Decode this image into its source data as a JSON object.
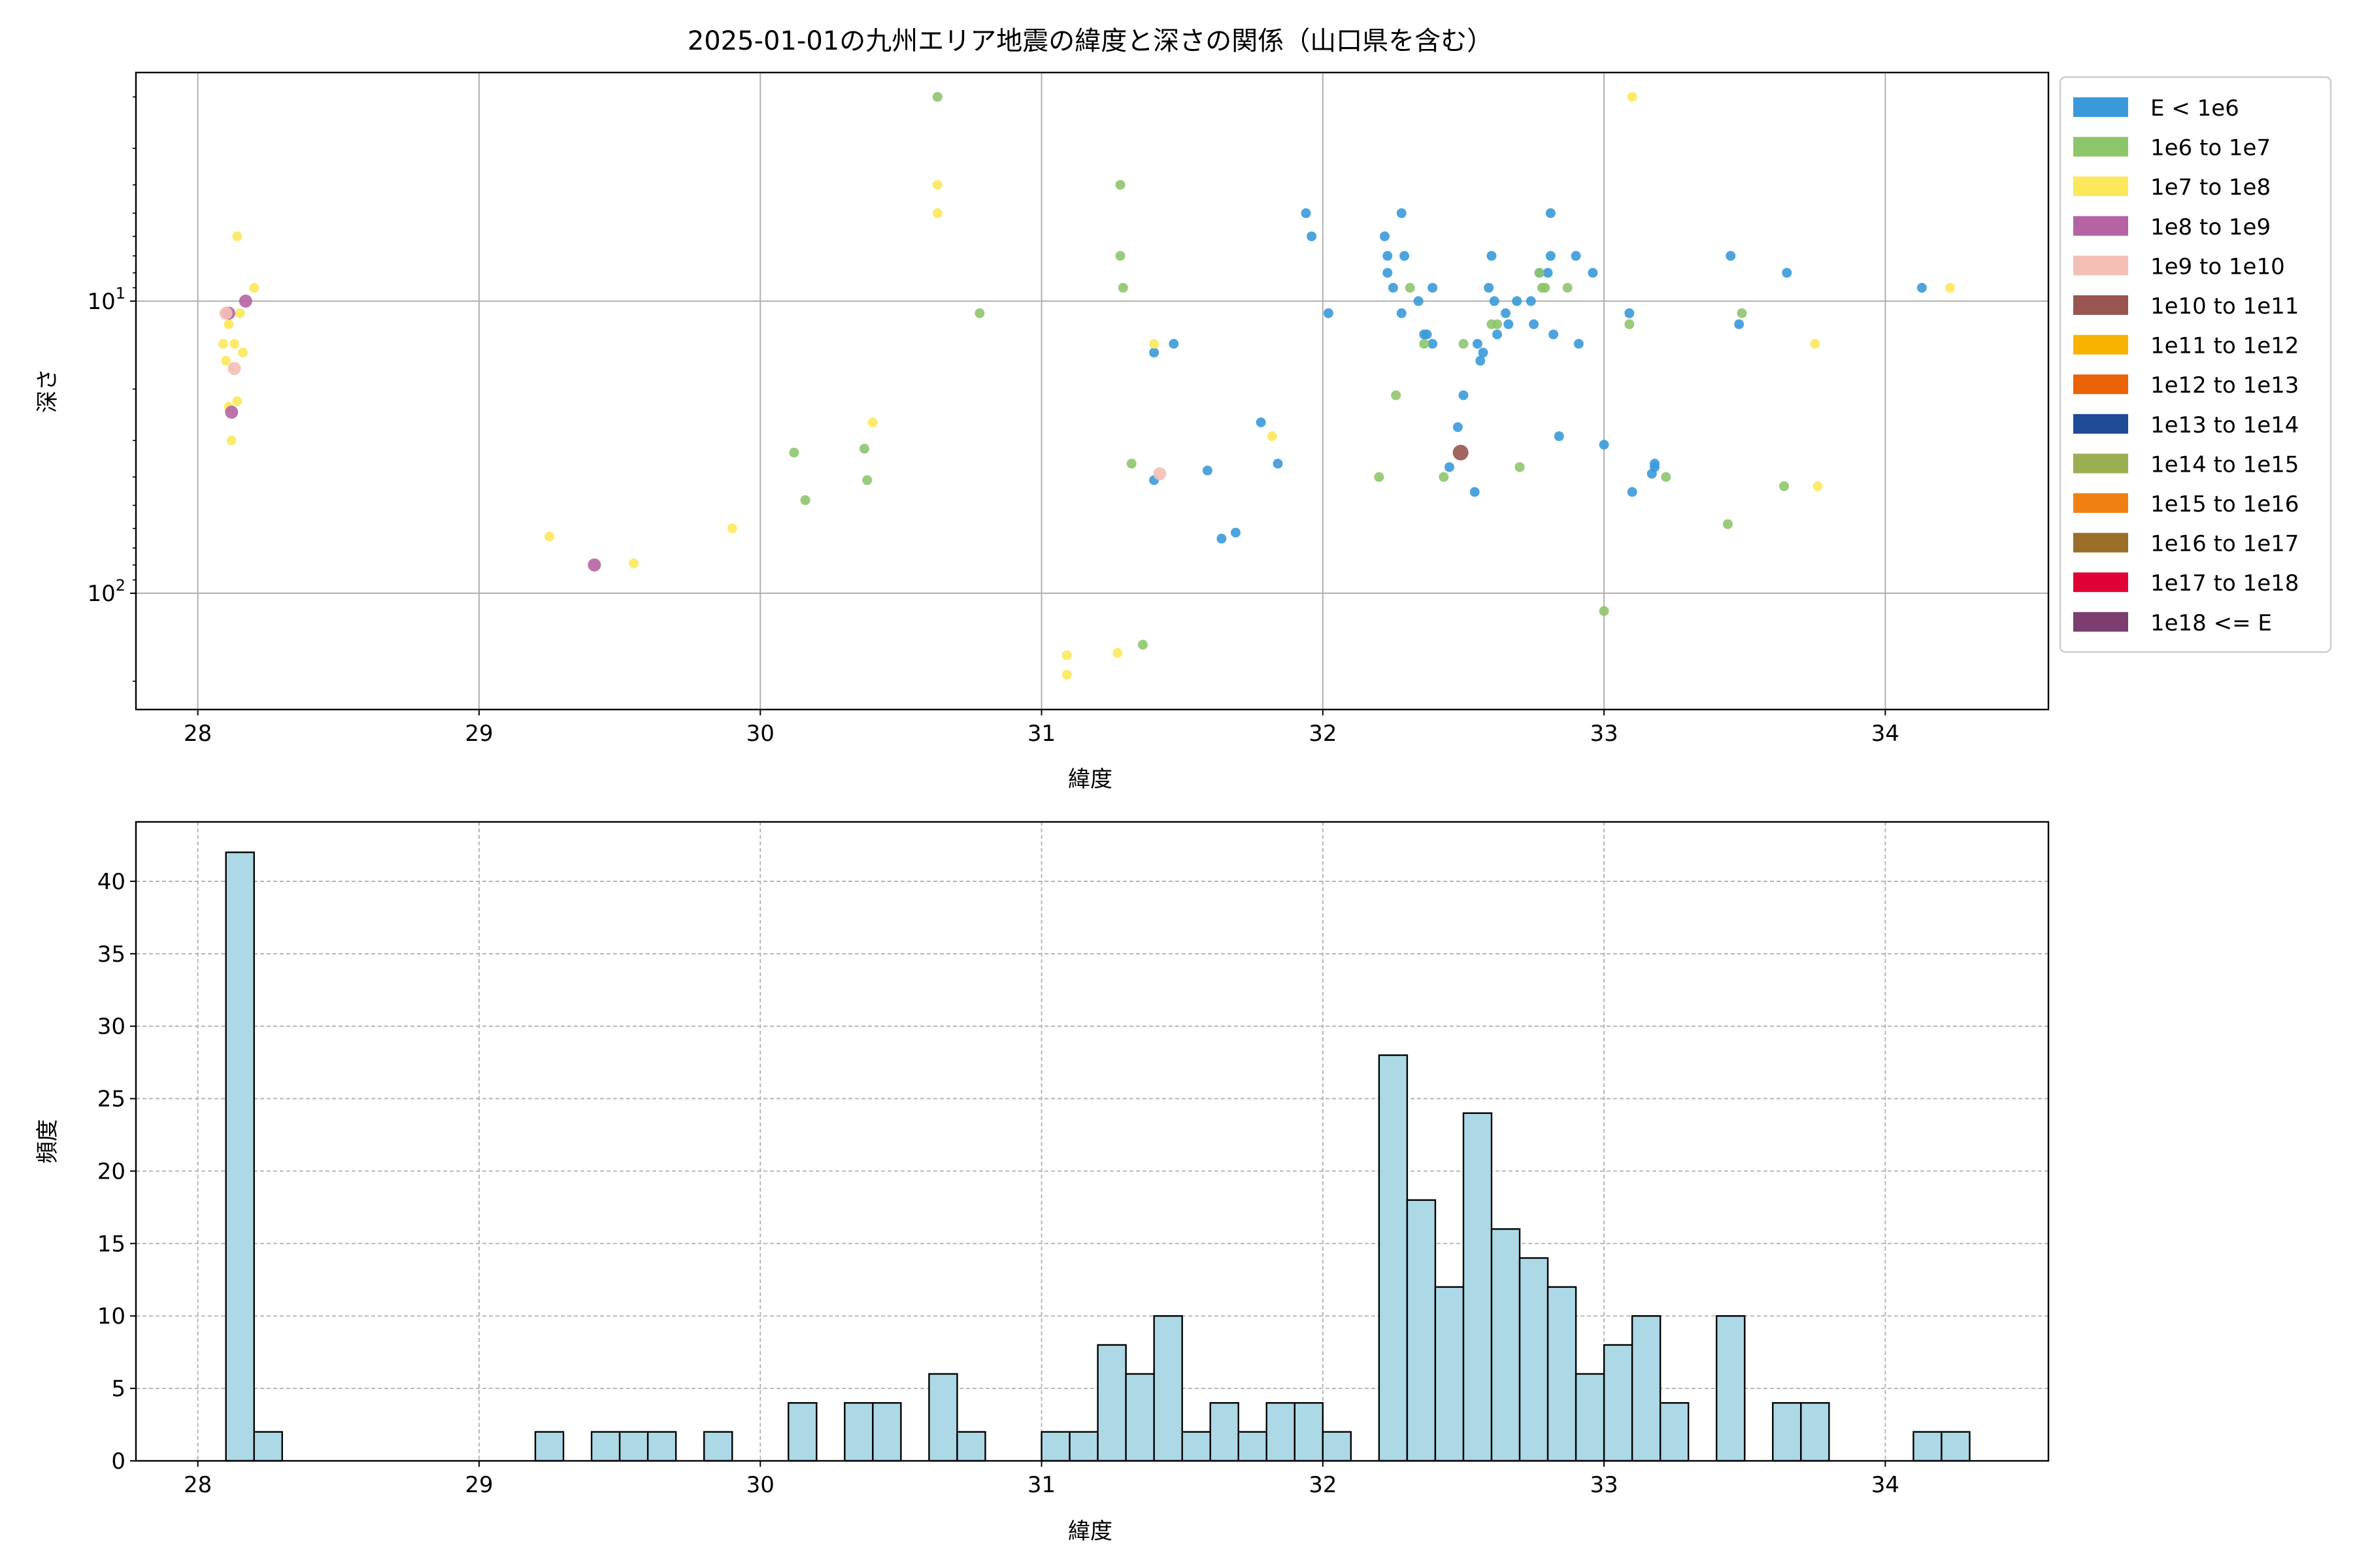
{
  "figure": {
    "title": "2025-01-01の九州エリア地震の緯度と深さの関係（山口県を含む）"
  },
  "chart_data": [
    {
      "type": "scatter",
      "title": "2025-01-01の九州エリア地震の緯度と深さの関係（山口県を含む）",
      "xlabel": "緯度",
      "ylabel": "深さ",
      "xlim": [
        27.78,
        34.58
      ],
      "ylim": [
        250,
        1.65
      ],
      "y_scale": "log",
      "y_inverted": true,
      "grid": true,
      "legend_position": "outside-right",
      "x_ticks": [
        "28",
        "29",
        "30",
        "31",
        "32",
        "33",
        "34"
      ],
      "y_ticks": [
        {
          "value": 10,
          "base": "10",
          "exp": "1"
        },
        {
          "value": 100,
          "base": "10",
          "exp": "2"
        }
      ],
      "legend": [
        {
          "label": "E < 1e6",
          "color": "#3a9ad9"
        },
        {
          "label": "1e6 to 1e7",
          "color": "#8dc56b"
        },
        {
          "label": "1e7 to 1e8",
          "color": "#fce85c"
        },
        {
          "label": "1e8 to 1e9",
          "color": "#b563a4"
        },
        {
          "label": "1e9 to 1e10",
          "color": "#f4bfb5"
        },
        {
          "label": "1e10 to 1e11",
          "color": "#985551"
        },
        {
          "label": "1e11 to 1e12",
          "color": "#f8b200"
        },
        {
          "label": "1e12 to 1e13",
          "color": "#ea6307"
        },
        {
          "label": "1e13 to 1e14",
          "color": "#1e4a96"
        },
        {
          "label": "1e14 to 1e15",
          "color": "#9bae52"
        },
        {
          "label": "1e15 to 1e16",
          "color": "#f08012"
        },
        {
          "label": "1e16 to 1e17",
          "color": "#9a6f2a"
        },
        {
          "label": "1e17 to 1e18",
          "color": "#df0036"
        },
        {
          "label": "1e18 <= E",
          "color": "#7b3e6e"
        }
      ],
      "series": [
        {
          "category": "E < 1e6",
          "points": [
            [
              31.4,
              15
            ],
            [
              31.4,
              41
            ],
            [
              31.47,
              14
            ],
            [
              31.59,
              38
            ],
            [
              31.64,
              65
            ],
            [
              31.69,
              62
            ],
            [
              31.78,
              26
            ],
            [
              31.84,
              36
            ],
            [
              31.94,
              5
            ],
            [
              31.96,
              6
            ],
            [
              32.02,
              11
            ],
            [
              32.22,
              6
            ],
            [
              32.23,
              7
            ],
            [
              32.23,
              8
            ],
            [
              32.25,
              9
            ],
            [
              32.28,
              5
            ],
            [
              32.28,
              11
            ],
            [
              32.29,
              7
            ],
            [
              32.34,
              10
            ],
            [
              32.36,
              13
            ],
            [
              32.37,
              13
            ],
            [
              32.39,
              9
            ],
            [
              32.39,
              14
            ],
            [
              32.45,
              37
            ],
            [
              32.48,
              27
            ],
            [
              32.5,
              21
            ],
            [
              32.54,
              45
            ],
            [
              32.55,
              14
            ],
            [
              32.56,
              16
            ],
            [
              32.57,
              15
            ],
            [
              32.59,
              9
            ],
            [
              32.6,
              7
            ],
            [
              32.61,
              10
            ],
            [
              32.62,
              13
            ],
            [
              32.65,
              11
            ],
            [
              32.66,
              12
            ],
            [
              32.69,
              10
            ],
            [
              32.74,
              10
            ],
            [
              32.75,
              12
            ],
            [
              32.77,
              8
            ],
            [
              32.8,
              8
            ],
            [
              32.81,
              5
            ],
            [
              32.81,
              7
            ],
            [
              32.82,
              13
            ],
            [
              32.84,
              29
            ],
            [
              32.9,
              7
            ],
            [
              32.91,
              14
            ],
            [
              32.96,
              8
            ],
            [
              33.0,
              31
            ],
            [
              33.09,
              11
            ],
            [
              33.1,
              45
            ],
            [
              33.17,
              39
            ],
            [
              33.18,
              37
            ],
            [
              33.18,
              36
            ],
            [
              33.45,
              7
            ],
            [
              33.48,
              12
            ],
            [
              33.65,
              8
            ],
            [
              34.13,
              9
            ]
          ]
        },
        {
          "category": "1e6 to 1e7",
          "points": [
            [
              30.12,
              33
            ],
            [
              30.16,
              48
            ],
            [
              30.37,
              32
            ],
            [
              30.38,
              41
            ],
            [
              30.63,
              2
            ],
            [
              30.78,
              11
            ],
            [
              31.28,
              4
            ],
            [
              31.28,
              7
            ],
            [
              31.29,
              9
            ],
            [
              31.32,
              36
            ],
            [
              31.36,
              150
            ],
            [
              32.2,
              40
            ],
            [
              32.26,
              21
            ],
            [
              32.31,
              9
            ],
            [
              32.36,
              14
            ],
            [
              32.43,
              40
            ],
            [
              32.5,
              14
            ],
            [
              32.6,
              12
            ],
            [
              32.62,
              12
            ],
            [
              32.7,
              37
            ],
            [
              32.77,
              8
            ],
            [
              32.78,
              9
            ],
            [
              32.79,
              9
            ],
            [
              32.87,
              9
            ],
            [
              33.0,
              115
            ],
            [
              33.09,
              12
            ],
            [
              33.22,
              40
            ],
            [
              33.44,
              58
            ],
            [
              33.49,
              11
            ],
            [
              33.64,
              43
            ]
          ]
        },
        {
          "category": "1e7 to 1e8",
          "points": [
            [
              28.09,
              14
            ],
            [
              28.1,
              16
            ],
            [
              28.11,
              12
            ],
            [
              28.11,
              23
            ],
            [
              28.12,
              30
            ],
            [
              28.13,
              14
            ],
            [
              28.14,
              22
            ],
            [
              28.14,
              6
            ],
            [
              28.15,
              11
            ],
            [
              28.16,
              15
            ],
            [
              28.2,
              9
            ],
            [
              29.25,
              64
            ],
            [
              29.55,
              79
            ],
            [
              29.9,
              60
            ],
            [
              30.4,
              26
            ],
            [
              30.63,
              4
            ],
            [
              30.63,
              5
            ],
            [
              31.09,
              163
            ],
            [
              31.09,
              190
            ],
            [
              31.27,
              160
            ],
            [
              31.4,
              14
            ],
            [
              31.82,
              29
            ],
            [
              33.1,
              2
            ],
            [
              33.75,
              14
            ],
            [
              33.76,
              43
            ],
            [
              34.23,
              9
            ]
          ]
        },
        {
          "category": "1e8 to 1e9",
          "points": [
            [
              28.11,
              11
            ],
            [
              28.12,
              24
            ],
            [
              28.17,
              10
            ],
            [
              29.41,
              80
            ]
          ]
        },
        {
          "category": "1e9 to 1e10",
          "points": [
            [
              28.1,
              11
            ],
            [
              28.13,
              17
            ],
            [
              31.42,
              39
            ]
          ]
        },
        {
          "category": "1e10 to 1e11",
          "points": [
            [
              32.49,
              33
            ]
          ]
        }
      ]
    },
    {
      "type": "bar",
      "title": "",
      "xlabel": "緯度",
      "ylabel": "頻度",
      "xlim": [
        27.78,
        34.58
      ],
      "ylim": [
        0,
        44.1
      ],
      "grid": true,
      "bin_width": 0.1,
      "x_ticks": [
        "28",
        "29",
        "30",
        "31",
        "32",
        "33",
        "34"
      ],
      "y_ticks": [
        "0",
        "5",
        "10",
        "15",
        "20",
        "25",
        "30",
        "35",
        "40"
      ],
      "bar_color": "#add8e6",
      "bins": [
        [
          28.1,
          42
        ],
        [
          28.2,
          2
        ],
        [
          29.2,
          2
        ],
        [
          29.4,
          2
        ],
        [
          29.5,
          2
        ],
        [
          29.6,
          2
        ],
        [
          29.8,
          2
        ],
        [
          30.1,
          4
        ],
        [
          30.3,
          4
        ],
        [
          30.4,
          4
        ],
        [
          30.6,
          6
        ],
        [
          30.7,
          2
        ],
        [
          31.0,
          2
        ],
        [
          31.1,
          2
        ],
        [
          31.2,
          8
        ],
        [
          31.3,
          6
        ],
        [
          31.4,
          10
        ],
        [
          31.5,
          2
        ],
        [
          31.6,
          4
        ],
        [
          31.7,
          2
        ],
        [
          31.8,
          4
        ],
        [
          31.9,
          4
        ],
        [
          32.0,
          2
        ],
        [
          32.2,
          28
        ],
        [
          32.3,
          18
        ],
        [
          32.4,
          12
        ],
        [
          32.5,
          24
        ],
        [
          32.6,
          16
        ],
        [
          32.7,
          14
        ],
        [
          32.8,
          12
        ],
        [
          32.9,
          6
        ],
        [
          33.0,
          8
        ],
        [
          33.1,
          10
        ],
        [
          33.2,
          4
        ],
        [
          33.4,
          10
        ],
        [
          33.6,
          4
        ],
        [
          33.7,
          4
        ],
        [
          34.1,
          2
        ],
        [
          34.2,
          2
        ]
      ]
    }
  ]
}
